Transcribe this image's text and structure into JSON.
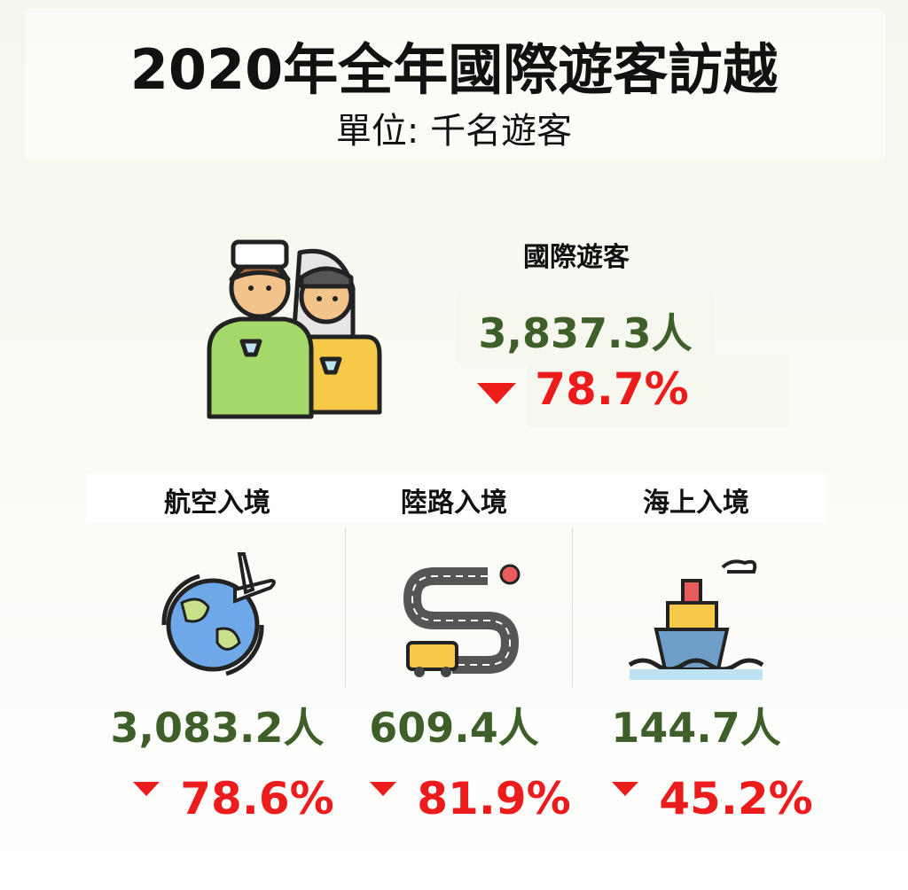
{
  "header": {
    "title": "2020年全年國際遊客訪越",
    "subtitle": "單位: 千名遊客"
  },
  "total": {
    "label": "國際遊客",
    "value": "3,837.3人",
    "change": "78.7%"
  },
  "segments": [
    {
      "label": "航空入境",
      "value": "3,083.2人",
      "change": "78.6%"
    },
    {
      "label": "陸路入境",
      "value": "609.4人",
      "change": "81.9%"
    },
    {
      "label": "海上入境",
      "value": "144.7人",
      "change": "45.2%"
    }
  ]
}
